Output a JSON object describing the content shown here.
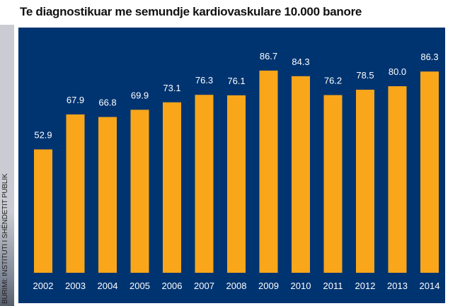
{
  "title": "Te diagnostikuar me semundje kardiovaskulare 10.000 banore",
  "source": "BURIMI: INSTITUTI I SHËNDETIT PUBLIK",
  "colors": {
    "background": "#003471",
    "bar": "#f9a61a",
    "label": "#ffffff",
    "title": "#111111"
  },
  "chart_data": {
    "type": "bar",
    "title": "Te diagnostikuar me semundje kardiovaskulare 10.000 banore",
    "categories": [
      "2002",
      "2003",
      "2004",
      "2005",
      "2006",
      "2007",
      "2008",
      "2009",
      "2010",
      "2011",
      "2012",
      "2013",
      "2014"
    ],
    "values": [
      52.9,
      67.9,
      66.8,
      69.9,
      73.1,
      76.3,
      76.1,
      86.7,
      84.3,
      76.2,
      78.5,
      80.0,
      86.3
    ],
    "value_labels": [
      "52.9",
      "67.9",
      "66.8",
      "69.9",
      "73.1",
      "76.3",
      "76.1",
      "86.7",
      "84.3",
      "76.2",
      "78.5",
      "80.0",
      "86.3"
    ],
    "xlabel": "",
    "ylabel": "",
    "ylim": [
      0,
      100
    ],
    "grid": false,
    "legend": "none"
  }
}
